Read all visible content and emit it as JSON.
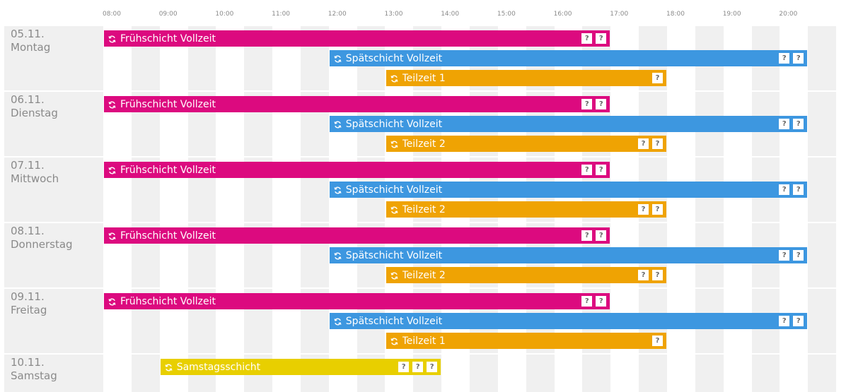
{
  "axis": {
    "start_hour": 8,
    "hours": [
      "08:00",
      "09:00",
      "10:00",
      "11:00",
      "12:00",
      "13:00",
      "14:00",
      "15:00",
      "16:00",
      "17:00",
      "18:00",
      "19:00",
      "20:00"
    ]
  },
  "colors": {
    "frueh": "#dc0a7f",
    "spaet": "#3d97e0",
    "teil": "#efa303",
    "samstag": "#e8cf00",
    "stripe": "#f0f0f0"
  },
  "days": [
    {
      "date": "05.11.",
      "name": "Montag",
      "shifts": [
        {
          "label": "Frühschicht Vollzeit",
          "start": 8.0,
          "end": 17.0,
          "color": "frueh",
          "badges": [
            "?",
            "?"
          ]
        },
        {
          "label": "Spätschicht Vollzeit",
          "start": 12.0,
          "end": 20.5,
          "color": "spaet",
          "badges": [
            "?",
            "?"
          ]
        },
        {
          "label": "Teilzeit 1",
          "start": 13.0,
          "end": 18.0,
          "color": "teil",
          "badges": [
            "?"
          ]
        }
      ]
    },
    {
      "date": "06.11.",
      "name": "Dienstag",
      "shifts": [
        {
          "label": "Frühschicht Vollzeit",
          "start": 8.0,
          "end": 17.0,
          "color": "frueh",
          "badges": [
            "?",
            "?"
          ]
        },
        {
          "label": "Spätschicht Vollzeit",
          "start": 12.0,
          "end": 20.5,
          "color": "spaet",
          "badges": [
            "?",
            "?"
          ]
        },
        {
          "label": "Teilzeit 2",
          "start": 13.0,
          "end": 18.0,
          "color": "teil",
          "badges": [
            "?",
            "?"
          ]
        }
      ]
    },
    {
      "date": "07.11.",
      "name": "Mittwoch",
      "shifts": [
        {
          "label": "Frühschicht Vollzeit",
          "start": 8.0,
          "end": 17.0,
          "color": "frueh",
          "badges": [
            "?",
            "?"
          ]
        },
        {
          "label": "Spätschicht Vollzeit",
          "start": 12.0,
          "end": 20.5,
          "color": "spaet",
          "badges": [
            "?",
            "?"
          ]
        },
        {
          "label": "Teilzeit 2",
          "start": 13.0,
          "end": 18.0,
          "color": "teil",
          "badges": [
            "?",
            "?"
          ]
        }
      ]
    },
    {
      "date": "08.11.",
      "name": "Donnerstag",
      "shifts": [
        {
          "label": "Frühschicht Vollzeit",
          "start": 8.0,
          "end": 17.0,
          "color": "frueh",
          "badges": [
            "?",
            "?"
          ]
        },
        {
          "label": "Spätschicht Vollzeit",
          "start": 12.0,
          "end": 20.5,
          "color": "spaet",
          "badges": [
            "?",
            "?"
          ]
        },
        {
          "label": "Teilzeit 2",
          "start": 13.0,
          "end": 18.0,
          "color": "teil",
          "badges": [
            "?",
            "?"
          ]
        }
      ]
    },
    {
      "date": "09.11.",
      "name": "Freitag",
      "shifts": [
        {
          "label": "Frühschicht Vollzeit",
          "start": 8.0,
          "end": 17.0,
          "color": "frueh",
          "badges": [
            "?",
            "?"
          ]
        },
        {
          "label": "Spätschicht Vollzeit",
          "start": 12.0,
          "end": 20.5,
          "color": "spaet",
          "badges": [
            "?",
            "?"
          ]
        },
        {
          "label": "Teilzeit 1",
          "start": 13.0,
          "end": 18.0,
          "color": "teil",
          "badges": [
            "?"
          ]
        }
      ]
    },
    {
      "date": "10.11.",
      "name": "Samstag",
      "shifts": [
        {
          "label": "Samstagsschicht",
          "start": 9.0,
          "end": 14.0,
          "color": "samstag",
          "badges": [
            "?",
            "?",
            "?"
          ]
        }
      ]
    }
  ]
}
